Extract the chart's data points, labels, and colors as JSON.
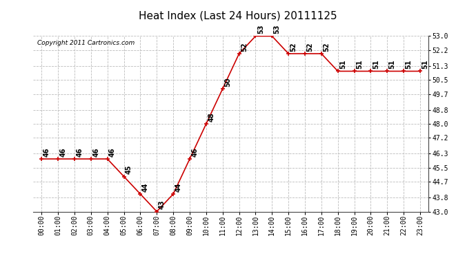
{
  "title": "Heat Index (Last 24 Hours) 20111125",
  "copyright_text": "Copyright 2011 Cartronics.com",
  "x_labels": [
    "00:00",
    "01:00",
    "02:00",
    "03:00",
    "04:00",
    "05:00",
    "06:00",
    "07:00",
    "08:00",
    "09:00",
    "10:00",
    "11:00",
    "12:00",
    "13:00",
    "14:00",
    "15:00",
    "16:00",
    "17:00",
    "18:00",
    "19:00",
    "20:00",
    "21:00",
    "22:00",
    "23:00"
  ],
  "y_values": [
    46,
    46,
    46,
    46,
    46,
    45,
    44,
    43,
    44,
    46,
    48,
    50,
    52,
    53,
    53,
    52,
    52,
    52,
    51,
    51,
    51,
    51,
    51,
    51
  ],
  "ylim_min": 43.0,
  "ylim_max": 53.0,
  "yticks": [
    43.0,
    43.8,
    44.7,
    45.5,
    46.3,
    47.2,
    48.0,
    48.8,
    49.7,
    50.5,
    51.3,
    52.2,
    53.0
  ],
  "line_color": "#cc0000",
  "marker_color": "#cc0000",
  "bg_color": "#ffffff",
  "grid_color": "#bbbbbb",
  "title_fontsize": 11,
  "tick_fontsize": 7,
  "copyright_fontsize": 6.5,
  "label_fontsize": 7
}
